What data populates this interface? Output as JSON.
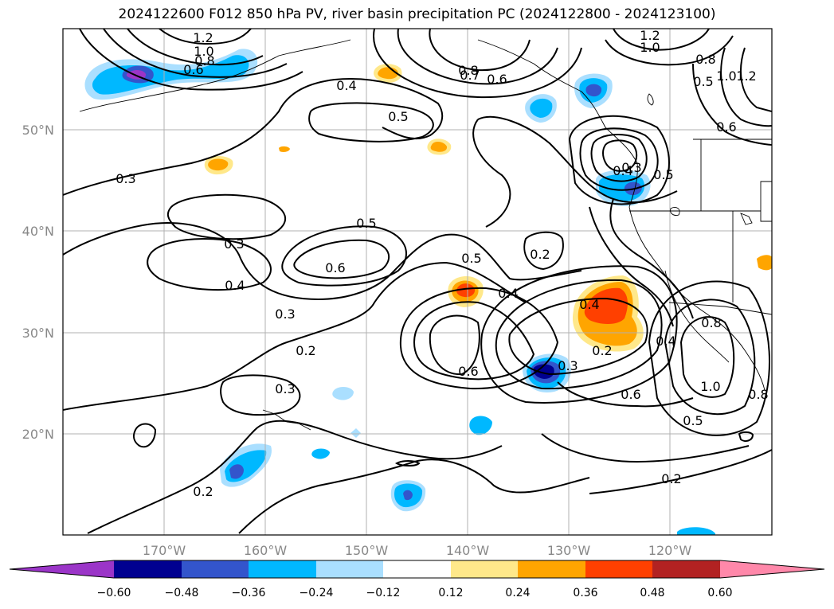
{
  "title": "2024122600 F012 850 hPa PV, river basin precipitation PC (2024122800 - 2024123100)",
  "lat_ticks": [
    "50°N",
    "40°N",
    "30°N",
    "20°N"
  ],
  "lon_ticks": [
    "170°W",
    "160°W",
    "150°W",
    "140°W",
    "130°W",
    "120°W"
  ],
  "colorbar": {
    "colors": [
      "#9b35c8",
      "#000090",
      "#3355cc",
      "#00b8ff",
      "#aadfff",
      "#ffffff",
      "#ffe88a",
      "#ffa500",
      "#ff4000",
      "#b22222",
      "#ff88aa"
    ],
    "labels": [
      "−0.60",
      "−0.48",
      "−0.36",
      "−0.24",
      "−0.12",
      "0.12",
      "0.24",
      "0.36",
      "0.48",
      "0.60"
    ]
  },
  "contour_labels": [
    "1.2",
    "1.0",
    "0.8",
    "0.6",
    "0.4",
    "0.5",
    "0.3",
    "0.8",
    "0.7",
    "0.6",
    "1.2",
    "1.0",
    "0.8",
    "0.5",
    "1.0",
    "1.2",
    "0.6",
    "0.5",
    "0.4",
    "0.3",
    "0.5",
    "0.3",
    "0.6",
    "0.4",
    "0.3",
    "0.2",
    "0.3",
    "0.2",
    "0.4",
    "0.4",
    "0.2",
    "0.3",
    "0.6",
    "0.6",
    "1.0",
    "0.8",
    "0.5",
    "0.5",
    "0.2",
    "0.2",
    "0.4",
    "0.8"
  ],
  "chart_data": {
    "type": "map",
    "title": "2024122600 F012 850 hPa PV, river basin precipitation PC (2024122800 - 2024123100)",
    "lon_range": [
      -180,
      -110
    ],
    "lat_range": [
      10,
      60
    ],
    "grid": true,
    "contour_field": "850 hPa PV",
    "contour_levels": [
      0.2,
      0.3,
      0.4,
      0.5,
      0.6,
      0.7,
      0.8,
      1.0,
      1.2
    ],
    "shading_field": "river basin precipitation PC",
    "shading_levels": [
      -0.6,
      -0.48,
      -0.36,
      -0.24,
      -0.12,
      0.12,
      0.24,
      0.36,
      0.48,
      0.6
    ],
    "features": [
      {
        "lon": -175,
        "lat": 55.5,
        "level": -0.48
      },
      {
        "lon": -168,
        "lat": 56,
        "level": -0.24
      },
      {
        "lon": -163,
        "lat": 56.5,
        "level": -0.24
      },
      {
        "lon": -149,
        "lat": 56,
        "level": 0.24
      },
      {
        "lon": -163.5,
        "lat": 46.5,
        "level": 0.24
      },
      {
        "lon": -144.5,
        "lat": 48.5,
        "level": 0.24
      },
      {
        "lon": -130,
        "lat": 52,
        "level": -0.24
      },
      {
        "lon": -125.5,
        "lat": 54,
        "level": -0.36
      },
      {
        "lon": -124.5,
        "lat": 43,
        "level": -0.36
      },
      {
        "lon": -141,
        "lat": 33.5,
        "level": 0.48
      },
      {
        "lon": -125,
        "lat": 31.5,
        "level": 0.48
      },
      {
        "lon": -132,
        "lat": 25.5,
        "level": -0.48
      },
      {
        "lon": -164,
        "lat": 16,
        "level": -0.36
      },
      {
        "lon": -146,
        "lat": 14,
        "level": -0.48
      },
      {
        "lon": -139,
        "lat": 21,
        "level": -0.24
      },
      {
        "lon": -111.5,
        "lat": 37,
        "level": 0.24
      }
    ]
  }
}
